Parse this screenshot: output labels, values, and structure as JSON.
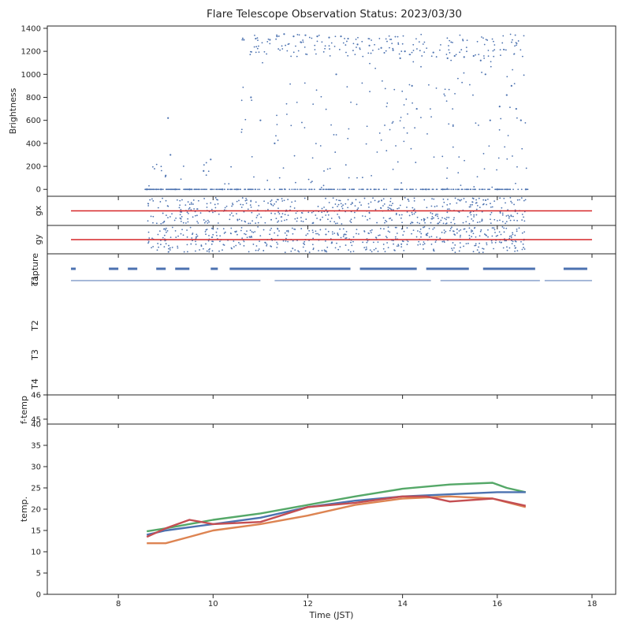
{
  "title": "Flare Telescope Observation Status: 2023/03/30",
  "colors": {
    "blue": "#4c72b0",
    "orange": "#dd8452",
    "green": "#55a868",
    "red": "#c44e52",
    "line_red": "#d62728",
    "axis": "#262626"
  },
  "chart_data": [
    {
      "type": "scatter",
      "panel": "brightness",
      "ylabel": "Brightness",
      "ylim": [
        -60,
        1420
      ],
      "yticks": [
        0,
        200,
        400,
        600,
        800,
        1000,
        1200,
        1400
      ],
      "series": [
        {
          "color": "blue",
          "points": [
            [
              8.6,
              0
            ],
            [
              8.9,
              0
            ],
            [
              9.0,
              120
            ],
            [
              9.05,
              620
            ],
            [
              9.1,
              300
            ],
            [
              9.2,
              0
            ],
            [
              9.5,
              0
            ],
            [
              9.8,
              160
            ],
            [
              9.95,
              260
            ],
            [
              10.2,
              0
            ],
            [
              10.5,
              0
            ],
            [
              10.65,
              1300
            ],
            [
              10.8,
              800
            ],
            [
              10.9,
              1310
            ],
            [
              11.0,
              600
            ],
            [
              11.2,
              1300
            ],
            [
              11.3,
              400
            ],
            [
              11.35,
              1330
            ],
            [
              11.5,
              1350
            ],
            [
              11.7,
              1330
            ],
            [
              11.85,
              1280
            ],
            [
              11.95,
              1340
            ],
            [
              12.2,
              1330
            ],
            [
              12.45,
              1320
            ],
            [
              12.6,
              1000
            ],
            [
              12.7,
              1330
            ],
            [
              12.85,
              1310
            ],
            [
              13.05,
              1260
            ],
            [
              13.3,
              1250
            ],
            [
              13.55,
              1230
            ],
            [
              13.8,
              1210
            ],
            [
              13.95,
              1140
            ],
            [
              14.05,
              1200
            ],
            [
              14.2,
              900
            ],
            [
              14.3,
              700
            ],
            [
              14.5,
              0
            ],
            [
              14.65,
              1190
            ],
            [
              14.85,
              0
            ],
            [
              14.95,
              1140
            ],
            [
              15.1,
              1160
            ],
            [
              15.3,
              1150
            ],
            [
              15.5,
              1160
            ],
            [
              15.65,
              1120
            ],
            [
              15.75,
              1000
            ],
            [
              15.85,
              600
            ],
            [
              16.0,
              0
            ],
            [
              16.05,
              720
            ],
            [
              16.2,
              820
            ],
            [
              16.3,
              900
            ],
            [
              16.4,
              700
            ],
            [
              16.5,
              600
            ],
            [
              16.6,
              0
            ]
          ]
        }
      ]
    },
    {
      "type": "scatter",
      "panel": "gx",
      "ylabel": "gx",
      "ylim": [
        -1,
        1
      ],
      "series": [
        {
          "color": "blue",
          "x_range": [
            8.6,
            16.6
          ],
          "level": 0
        },
        {
          "color": "line_red",
          "x_range": [
            7.0,
            18.0
          ],
          "level": 0
        }
      ]
    },
    {
      "type": "scatter",
      "panel": "gy",
      "ylabel": "gy",
      "ylim": [
        -1,
        1
      ],
      "series": [
        {
          "color": "blue",
          "x_range": [
            8.6,
            16.6
          ],
          "level": 0
        },
        {
          "color": "line_red",
          "x_range": [
            7.0,
            18.0
          ],
          "level": 0
        }
      ]
    },
    {
      "type": "scatter",
      "panel": "status",
      "ylabels": [
        "capture",
        "T1",
        "T2",
        "T3",
        "T4"
      ],
      "capture_segments": [
        [
          7.0,
          7.1
        ],
        [
          7.8,
          8.0
        ],
        [
          8.2,
          8.4
        ],
        [
          8.8,
          9.0
        ],
        [
          9.2,
          9.5
        ],
        [
          9.95,
          10.1
        ],
        [
          10.35,
          12.9
        ],
        [
          13.1,
          14.3
        ],
        [
          14.5,
          15.4
        ],
        [
          15.7,
          16.8
        ],
        [
          17.4,
          17.9
        ]
      ],
      "t1_segments": [
        [
          7.0,
          11.0
        ],
        [
          11.3,
          14.6
        ],
        [
          14.8,
          16.9
        ],
        [
          17.0,
          18.0
        ]
      ]
    },
    {
      "type": "line",
      "panel": "f-temp",
      "ylabel": "f-temp",
      "ylim": [
        44.8,
        46
      ],
      "yticks": [
        45,
        46
      ]
    },
    {
      "type": "line",
      "panel": "temp",
      "ylabel": "temp.",
      "xlabel": "Time (JST)",
      "xlim": [
        6.5,
        18.5
      ],
      "xticks": [
        8,
        10,
        12,
        14,
        16,
        18
      ],
      "ylim": [
        0,
        40
      ],
      "yticks": [
        0,
        5,
        10,
        15,
        20,
        25,
        30,
        35
      ],
      "series": [
        {
          "color": "green",
          "x": [
            8.6,
            9.0,
            10.0,
            11.0,
            12.0,
            13.0,
            14.0,
            15.0,
            15.9,
            16.2,
            16.6
          ],
          "values": [
            14.8,
            15.5,
            17.5,
            19.0,
            21.0,
            23.0,
            24.8,
            25.8,
            26.2,
            25.0,
            24.0
          ]
        },
        {
          "color": "blue",
          "x": [
            8.6,
            9.0,
            10.0,
            11.0,
            12.0,
            13.0,
            14.0,
            15.0,
            16.0,
            16.6
          ],
          "values": [
            14.0,
            15.0,
            16.5,
            18.0,
            20.5,
            22.0,
            23.0,
            23.5,
            24.0,
            24.0
          ]
        },
        {
          "color": "orange",
          "x": [
            8.6,
            9.0,
            9.5,
            10.0,
            11.0,
            12.0,
            13.0,
            14.0,
            15.0,
            15.9,
            16.6
          ],
          "values": [
            12.0,
            12.0,
            13.5,
            15.0,
            16.5,
            18.5,
            21.0,
            22.5,
            23.0,
            22.5,
            20.5
          ]
        },
        {
          "color": "red",
          "x": [
            8.6,
            9.0,
            9.5,
            10.0,
            11.0,
            12.0,
            13.0,
            14.0,
            14.5,
            15.0,
            15.9,
            16.6
          ],
          "values": [
            13.5,
            15.5,
            17.5,
            16.5,
            17.0,
            20.5,
            21.5,
            23.0,
            23.0,
            21.8,
            22.5,
            20.8
          ]
        }
      ]
    }
  ]
}
